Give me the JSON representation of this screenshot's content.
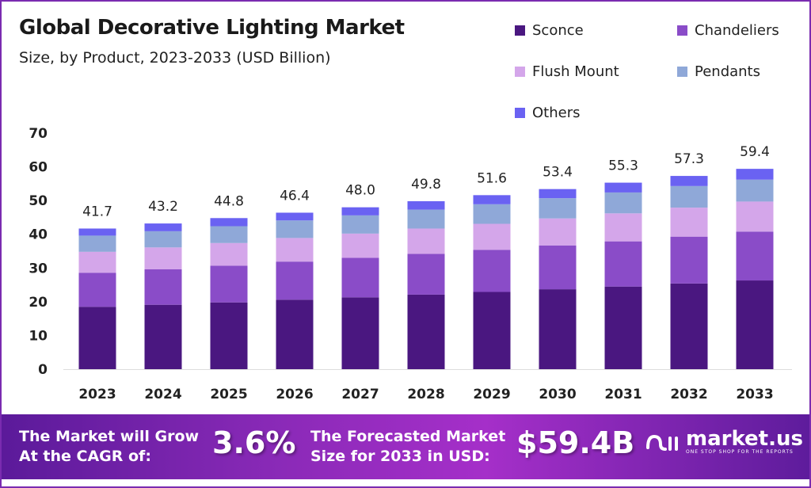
{
  "title": "Global Decorative Lighting Market",
  "subtitle": "Size, by Product, 2023-2033 (USD Billion)",
  "chart_data": {
    "type": "bar",
    "stacked": true,
    "categories": [
      "2023",
      "2024",
      "2025",
      "2026",
      "2027",
      "2028",
      "2029",
      "2030",
      "2031",
      "2032",
      "2033"
    ],
    "series": [
      {
        "name": "Sconce",
        "color": "#4a1780",
        "values": [
          18.5,
          19.1,
          19.8,
          20.6,
          21.3,
          22.1,
          22.9,
          23.7,
          24.5,
          25.4,
          26.3
        ]
      },
      {
        "name": "Chandeliers",
        "color": "#8a4cc8",
        "values": [
          10.1,
          10.5,
          10.9,
          11.3,
          11.7,
          12.1,
          12.5,
          13.0,
          13.4,
          13.9,
          14.5
        ]
      },
      {
        "name": "Flush Mount",
        "color": "#d4a6ea",
        "values": [
          6.2,
          6.5,
          6.7,
          7.0,
          7.2,
          7.5,
          7.7,
          8.0,
          8.3,
          8.6,
          8.9
        ]
      },
      {
        "name": "Pendants",
        "color": "#8fa8d8",
        "values": [
          4.8,
          4.8,
          5.0,
          5.2,
          5.4,
          5.6,
          5.8,
          6.0,
          6.2,
          6.4,
          6.5
        ]
      },
      {
        "name": "Others",
        "color": "#6a62f2",
        "values": [
          2.1,
          2.3,
          2.4,
          2.3,
          2.4,
          2.5,
          2.7,
          2.7,
          2.9,
          3.0,
          3.2
        ]
      }
    ],
    "totals": [
      "41.7",
      "43.2",
      "44.8",
      "46.4",
      "48.0",
      "49.8",
      "51.6",
      "53.4",
      "55.3",
      "57.3",
      "59.4"
    ],
    "yticks": [
      "0",
      "10",
      "20",
      "30",
      "40",
      "50",
      "60",
      "70"
    ],
    "ylim": [
      0,
      70
    ],
    "grid": false,
    "legend_position": "top-right"
  },
  "footer": {
    "cagr_label": [
      "The Market will Grow",
      "At the CAGR of:"
    ],
    "cagr_value": "3.6%",
    "forecast_label": [
      "The Forecasted Market",
      "Size for 2033 in USD:"
    ],
    "forecast_value": "$59.4B",
    "brand": "market.us",
    "brand_tagline": "ONE STOP SHOP FOR THE REPORTS"
  }
}
